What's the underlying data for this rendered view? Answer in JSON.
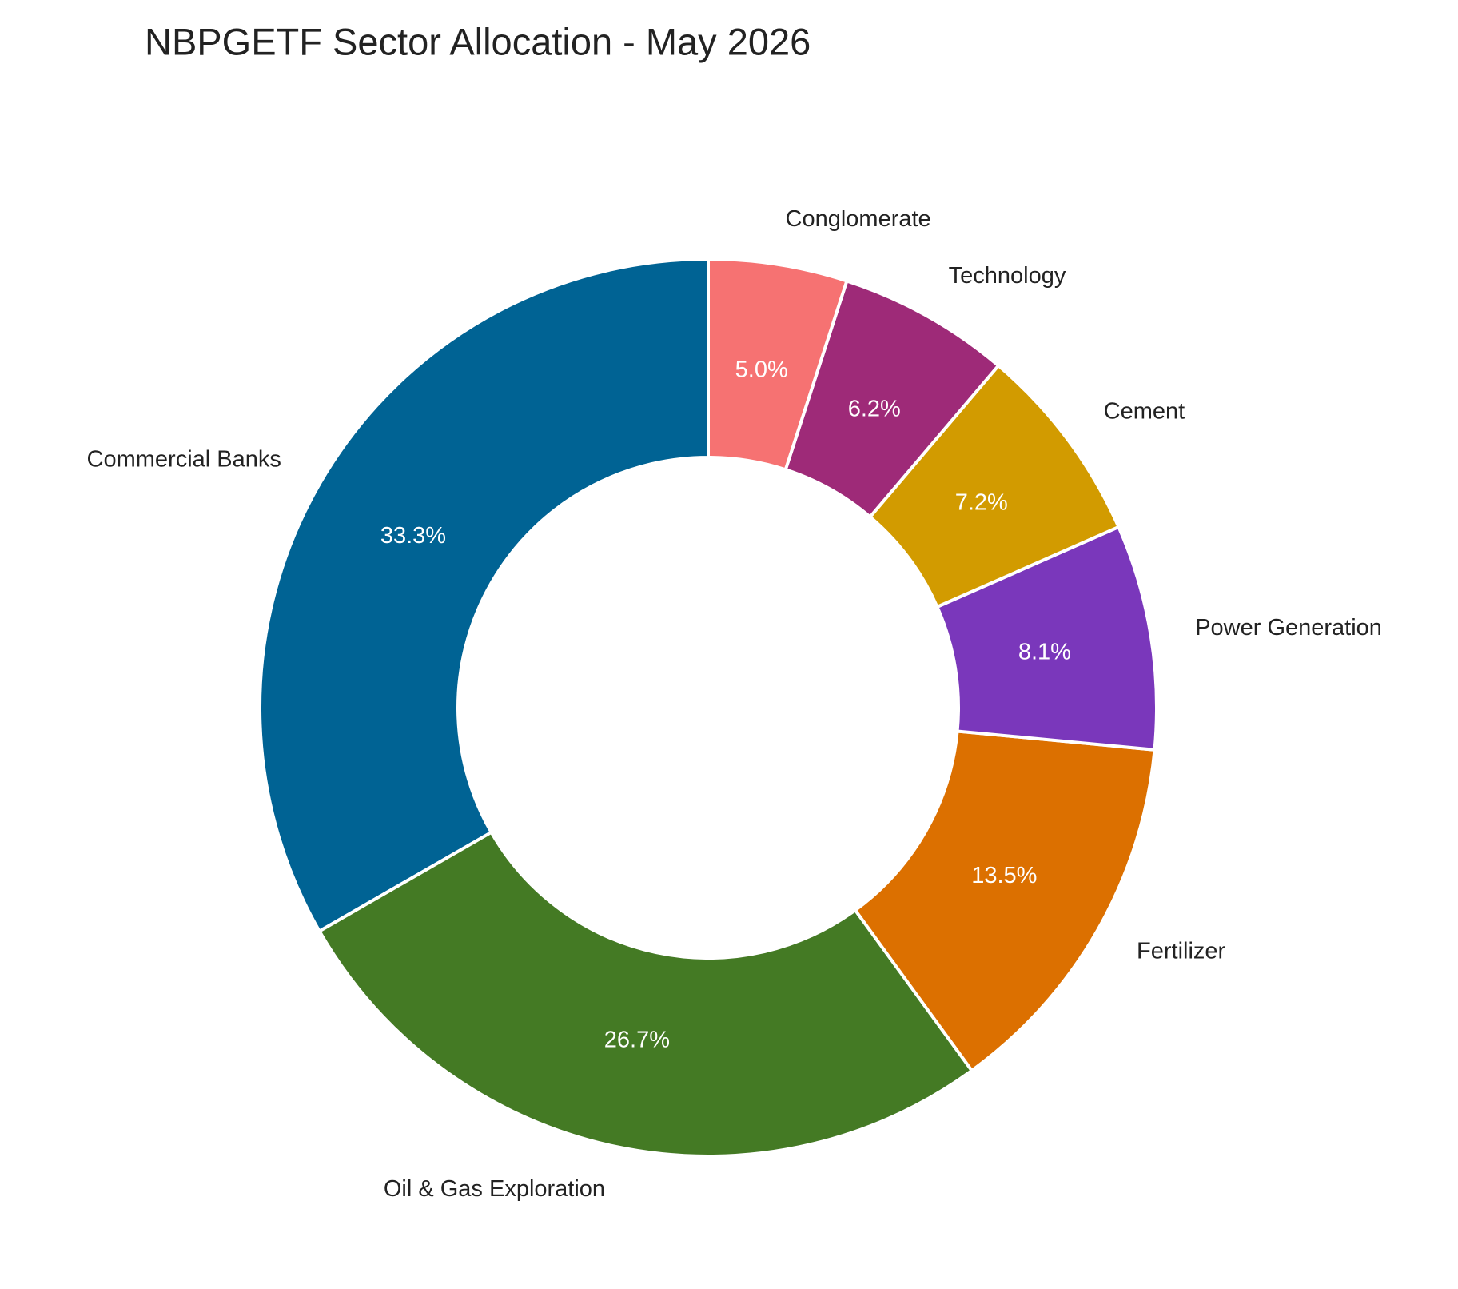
{
  "chart_data": {
    "type": "donut",
    "title": "NBPGETF Sector Allocation - May 2026",
    "categories": [
      "Commercial Banks",
      "Oil & Gas Exploration",
      "Fertilizer",
      "Power Generation",
      "Cement",
      "Technology",
      "Conglomerate"
    ],
    "values": [
      33.3,
      26.7,
      13.5,
      8.1,
      7.2,
      6.2,
      5.0
    ],
    "value_labels": [
      "33.3%",
      "26.7%",
      "13.5%",
      "8.1%",
      "7.2%",
      "6.2%",
      "5.0%"
    ],
    "colors": [
      "#006394",
      "#447a24",
      "#dc7000",
      "#7a37bb",
      "#d29b00",
      "#9e2a78",
      "#f67272"
    ]
  }
}
